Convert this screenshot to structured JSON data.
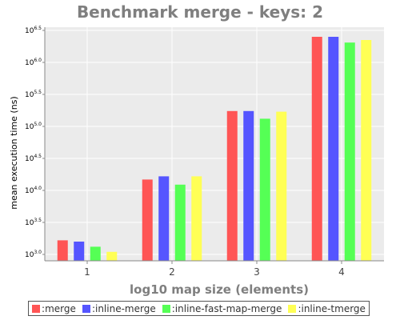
{
  "chart_data": {
    "type": "bar",
    "title": "Benchmark merge - keys: 2",
    "xlabel": "log10 map size (elements)",
    "ylabel": "mean execution time (ns)",
    "categories": [
      "1",
      "2",
      "3",
      "4"
    ],
    "y_scale": "log10",
    "ylim_log10": [
      2.9,
      6.55
    ],
    "y_ticks": [
      {
        "base": "10",
        "exp": "3.0",
        "log10": 3.0
      },
      {
        "base": "10",
        "exp": "3.5",
        "log10": 3.5
      },
      {
        "base": "10",
        "exp": "4.0",
        "log10": 4.0
      },
      {
        "base": "10",
        "exp": "4.5",
        "log10": 4.5
      },
      {
        "base": "10",
        "exp": "5.0",
        "log10": 5.0
      },
      {
        "base": "10",
        "exp": "5.5",
        "log10": 5.5
      },
      {
        "base": "10",
        "exp": "6.0",
        "log10": 6.0
      },
      {
        "base": "10",
        "exp": "6.5",
        "log10": 6.5
      }
    ],
    "series": [
      {
        "name": ":merge",
        "color": "#ff5555",
        "log10_values": [
          3.22,
          4.17,
          5.24,
          6.4
        ]
      },
      {
        "name": ":inline-merge",
        "color": "#5555ff",
        "log10_values": [
          3.2,
          4.22,
          5.24,
          6.4
        ]
      },
      {
        "name": ":inline-fast-map-merge",
        "color": "#55ff55",
        "log10_values": [
          3.12,
          4.09,
          5.12,
          6.31
        ]
      },
      {
        "name": ":inline-tmerge",
        "color": "#ffff55",
        "log10_values": [
          3.04,
          4.22,
          5.23,
          6.35
        ]
      }
    ],
    "grid": true,
    "legend_position": "bottom"
  }
}
